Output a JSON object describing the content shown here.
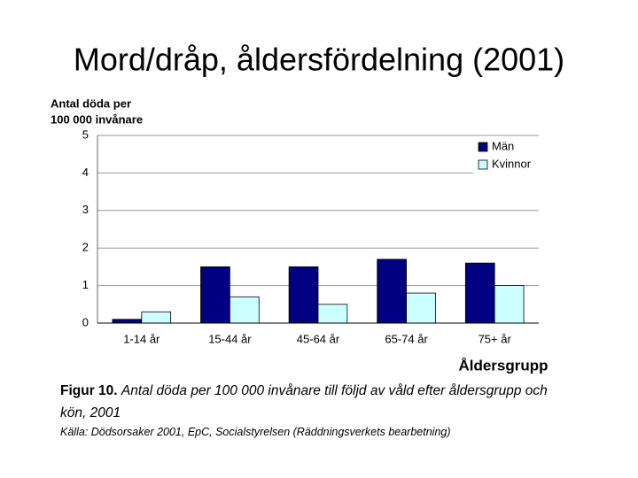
{
  "chart_data": {
    "type": "bar",
    "title": "Mord/dråp, åldersfördelning (2001)",
    "ylabel": [
      "Antal döda per",
      "100 000 invånare"
    ],
    "xlabel": "Åldersgrupp",
    "categories": [
      "1-14 år",
      "15-44 år",
      "45-64 år",
      "65-74 år",
      "75+ år"
    ],
    "series": [
      {
        "name": "Män",
        "color": "#000080",
        "values": [
          0.1,
          1.5,
          1.5,
          1.7,
          1.6
        ]
      },
      {
        "name": "Kvinnor",
        "color": "#ccffff",
        "values": [
          0.3,
          0.7,
          0.5,
          0.8,
          1.0
        ]
      }
    ],
    "ylim": [
      0,
      5
    ],
    "yticks": [
      0,
      1,
      2,
      3,
      4,
      5
    ],
    "grid": true,
    "legend": "top-right",
    "caption_label": "Figur 10.",
    "caption": "Antal döda per 100 000 invånare till följd av våld efter åldersgrupp och kön, 2001",
    "source": "Källa: Dödsorsaker 2001, EpC, Socialstyrelsen (Räddningsverkets bearbetning)"
  }
}
